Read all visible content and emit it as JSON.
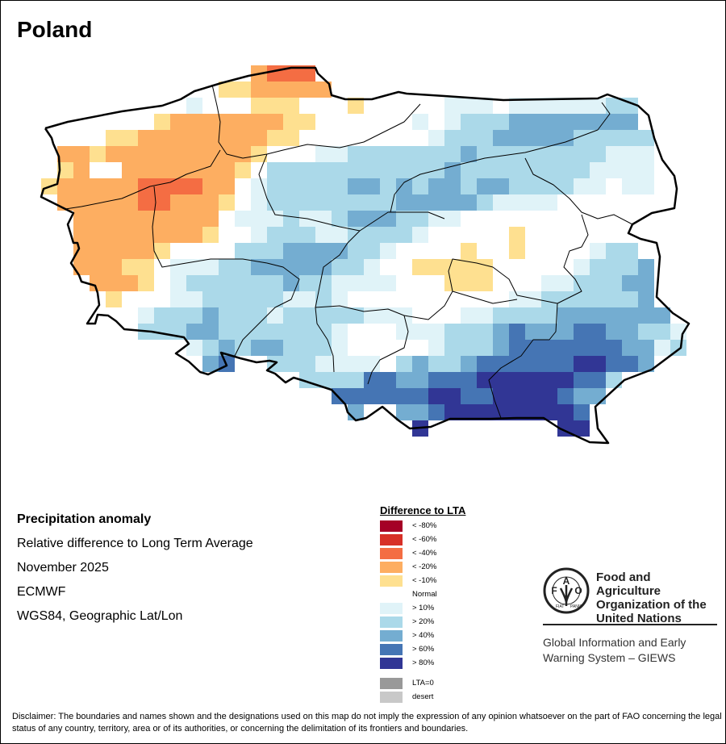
{
  "title": "Poland",
  "info": {
    "heading": "Precipitation anomaly",
    "subtitle": "Relative difference to Long Term Average",
    "period": "November 2025",
    "source": "ECMWF",
    "projection": "WGS84, Geographic Lat/Lon"
  },
  "legend": {
    "title": "Difference to LTA",
    "items": [
      {
        "code": "n80",
        "label": "< -80%",
        "color": "#a50026"
      },
      {
        "code": "n60",
        "label": "< -60%",
        "color": "#d73027"
      },
      {
        "code": "r",
        "label": "< -40%",
        "color": "#f46d43"
      },
      {
        "code": "o",
        "label": "< -20%",
        "color": "#fdae61"
      },
      {
        "code": "y",
        "label": "< -10%",
        "color": "#fee090"
      },
      {
        "code": "n",
        "label": "Normal",
        "color": "#ffffff"
      },
      {
        "code": "a",
        "label": "> 10%",
        "color": "#e0f3f8"
      },
      {
        "code": "b",
        "label": "> 20%",
        "color": "#abd9e9"
      },
      {
        "code": "c",
        "label": "> 40%",
        "color": "#74add1"
      },
      {
        "code": "d",
        "label": "> 60%",
        "color": "#4575b4"
      },
      {
        "code": "e",
        "label": "> 80%",
        "color": "#313695"
      }
    ],
    "extra": [
      {
        "label": "LTA=0",
        "color": "#999999"
      },
      {
        "label": "desert",
        "color": "#c8c8c8"
      }
    ]
  },
  "logo": {
    "org_line1": "Food and Agriculture",
    "org_line2": "Organization of the",
    "org_line3": "United Nations",
    "emblem_text": "FAO FIAT PANIS",
    "giews_line1": "Global Information and Early",
    "giews_line2": "Warning System – GIEWS"
  },
  "disclaimer": "Disclaimer: The boundaries and names shown and the designations used on this map do not imply the expression of any opinion whatsoever on the part of FAO concerning the legal status of any country, territory, area or of its authorities, or concerning the delimitation of its frontiers and boundaries."
}
